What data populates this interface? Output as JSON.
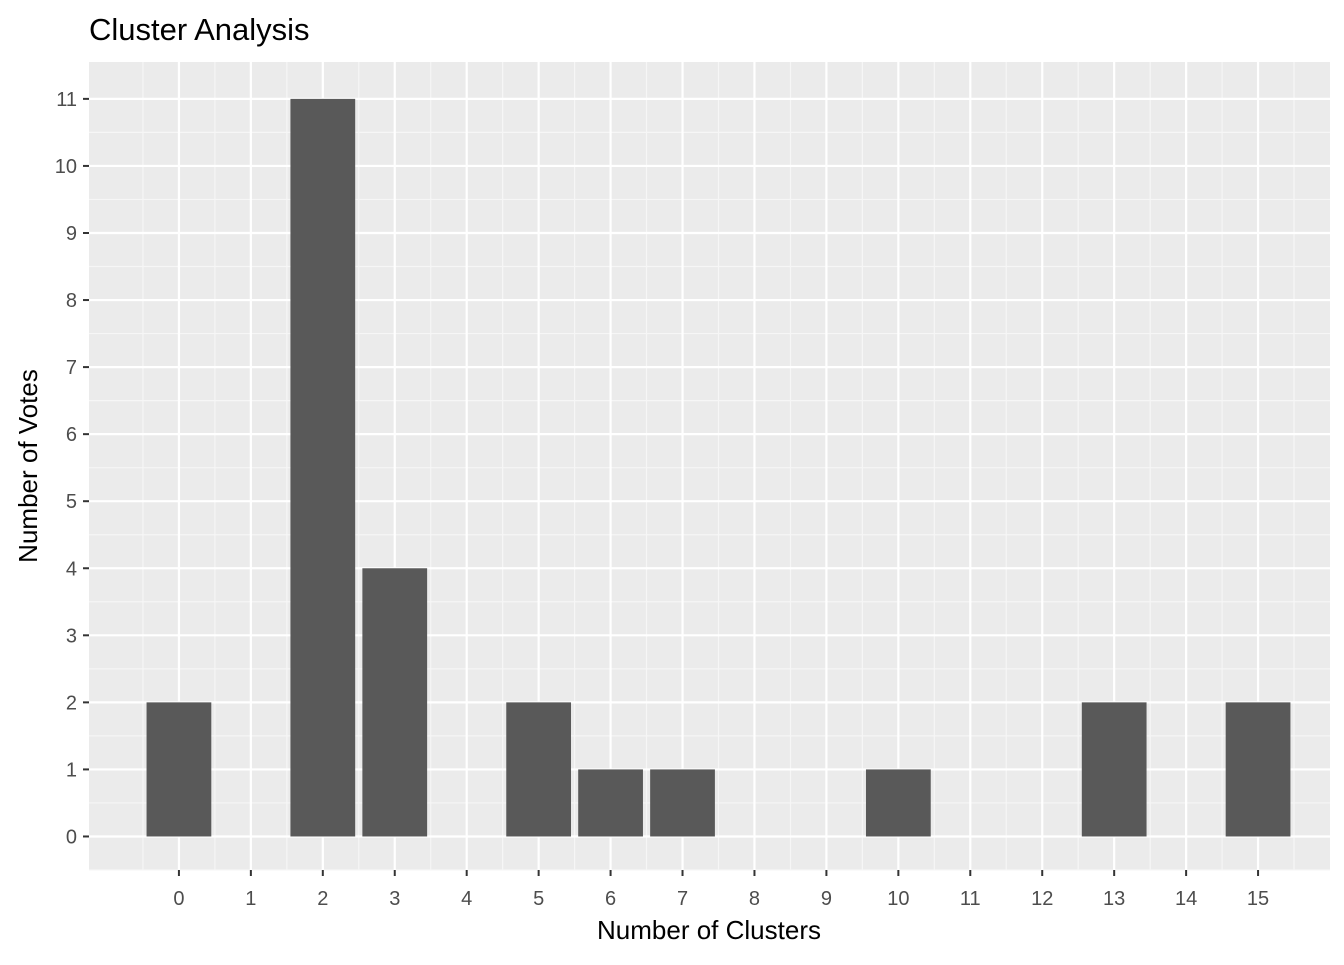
{
  "chart_data": {
    "type": "bar",
    "title": "Cluster Analysis",
    "xlabel": "Number of Clusters",
    "ylabel": "Number of Votes",
    "x_ticks": [
      0,
      1,
      2,
      3,
      4,
      5,
      6,
      7,
      8,
      9,
      10,
      11,
      12,
      13,
      14,
      15
    ],
    "y_ticks": [
      0,
      1,
      2,
      3,
      4,
      5,
      6,
      7,
      8,
      9,
      10,
      11
    ],
    "xlim": [
      -1.25,
      16
    ],
    "ylim": [
      -0.5,
      11.55
    ],
    "categories": [
      0,
      2,
      3,
      5,
      6,
      7,
      10,
      13,
      15
    ],
    "values": [
      2,
      11,
      4,
      2,
      1,
      1,
      1,
      2,
      2
    ],
    "grid": true,
    "colors": {
      "panel_background": "#ebebeb",
      "grid_major": "#ffffff",
      "grid_minor": "#f6f6f6",
      "bar_fill": "#595959",
      "tick_mark": "#333333"
    }
  }
}
